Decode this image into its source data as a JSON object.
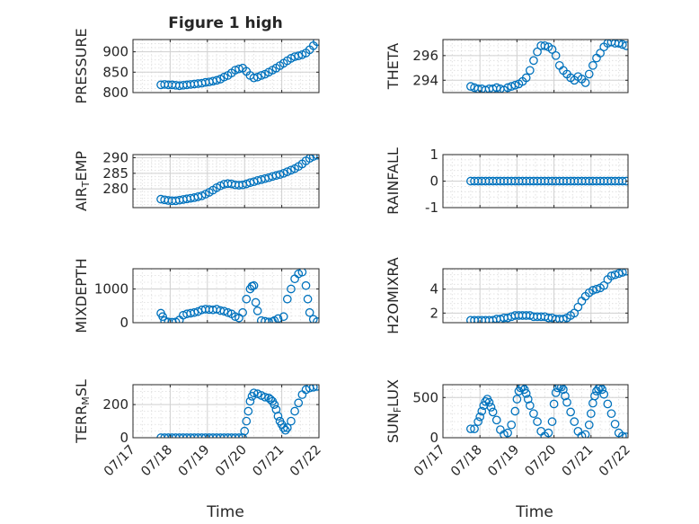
{
  "figure": {
    "title": "Figure 1 high",
    "x_axis_label": "Time",
    "date_ticks": [
      "07/17",
      "07/18",
      "07/19",
      "07/20",
      "07/21",
      "07/22"
    ],
    "marker_color": "#0072BD"
  },
  "chart_data": [
    {
      "type": "scatter",
      "ylabel": "PRESSURE",
      "grid": "on",
      "xlim": [
        "07/17",
        "07/22"
      ],
      "ylim": [
        800,
        930
      ],
      "yticks": [
        800,
        850,
        900
      ],
      "x": [
        17.75,
        17.85,
        17.95,
        18.05,
        18.15,
        18.25,
        18.35,
        18.45,
        18.55,
        18.65,
        18.75,
        18.85,
        18.95,
        19.05,
        19.15,
        19.25,
        19.35,
        19.45,
        19.55,
        19.65,
        19.75,
        19.85,
        19.95,
        20.05,
        20.15,
        20.25,
        20.35,
        20.45,
        20.55,
        20.65,
        20.75,
        20.85,
        20.95,
        21.05,
        21.15,
        21.25,
        21.35,
        21.45,
        21.55,
        21.65,
        21.75,
        21.85,
        21.95
      ],
      "y": [
        819,
        820,
        819,
        819,
        818,
        817,
        818,
        819,
        820,
        821,
        822,
        823,
        825,
        826,
        828,
        830,
        833,
        838,
        842,
        848,
        855,
        858,
        860,
        852,
        842,
        836,
        838,
        842,
        845,
        850,
        855,
        860,
        866,
        872,
        878,
        884,
        888,
        890,
        893,
        897,
        905,
        915,
        925
      ]
    },
    {
      "type": "scatter",
      "ylabel": "THETA",
      "grid": "on",
      "xlim": [
        "07/17",
        "07/22"
      ],
      "ylim": [
        293,
        297.3
      ],
      "yticks": [
        294,
        296
      ],
      "x": [
        17.75,
        17.85,
        17.95,
        18.05,
        18.15,
        18.25,
        18.35,
        18.45,
        18.55,
        18.65,
        18.75,
        18.85,
        18.95,
        19.05,
        19.15,
        19.25,
        19.35,
        19.45,
        19.55,
        19.65,
        19.75,
        19.85,
        19.95,
        20.05,
        20.15,
        20.25,
        20.35,
        20.45,
        20.55,
        20.65,
        20.75,
        20.85,
        20.95,
        21.05,
        21.15,
        21.25,
        21.35,
        21.45,
        21.55,
        21.65,
        21.75,
        21.85,
        21.95
      ],
      "y": [
        293.5,
        293.4,
        293.3,
        293.3,
        293.2,
        293.3,
        293.3,
        293.4,
        293.3,
        293.2,
        293.4,
        293.5,
        293.6,
        293.7,
        293.9,
        294.2,
        294.8,
        295.6,
        296.3,
        296.8,
        296.8,
        296.7,
        296.5,
        296.0,
        295.2,
        294.8,
        294.5,
        294.2,
        294.0,
        294.3,
        294.1,
        293.8,
        294.5,
        295.2,
        295.8,
        296.2,
        296.7,
        297.0,
        297.1,
        297.0,
        297.0,
        296.9,
        296.8
      ]
    },
    {
      "type": "scatter",
      "ylabel": "AIR_TEMP",
      "grid": "on",
      "xlim": [
        "07/17",
        "07/22"
      ],
      "ylim": [
        274,
        291
      ],
      "yticks": [
        280,
        285,
        290
      ],
      "x": [
        17.75,
        17.85,
        17.95,
        18.05,
        18.15,
        18.25,
        18.35,
        18.45,
        18.55,
        18.65,
        18.75,
        18.85,
        18.95,
        19.05,
        19.15,
        19.25,
        19.35,
        19.45,
        19.55,
        19.65,
        19.75,
        19.85,
        19.95,
        20.05,
        20.15,
        20.25,
        20.35,
        20.45,
        20.55,
        20.65,
        20.75,
        20.85,
        20.95,
        21.05,
        21.15,
        21.25,
        21.35,
        21.45,
        21.55,
        21.65,
        21.75,
        21.85,
        21.95
      ],
      "y": [
        276.7,
        276.5,
        276.3,
        276.2,
        276.2,
        276.4,
        276.6,
        276.8,
        277.0,
        277.2,
        277.5,
        277.8,
        278.3,
        278.9,
        279.6,
        280.4,
        281.0,
        281.5,
        281.7,
        281.6,
        281.3,
        281.2,
        281.3,
        281.6,
        282.0,
        282.3,
        282.7,
        283.0,
        283.3,
        283.6,
        284.0,
        284.3,
        284.6,
        285.0,
        285.5,
        286.0,
        286.5,
        287.2,
        288.0,
        289.0,
        289.8,
        290.4,
        290.8
      ]
    },
    {
      "type": "scatter",
      "ylabel": "RAINFALL",
      "grid": "on",
      "xlim": [
        "07/17",
        "07/22"
      ],
      "ylim": [
        -1,
        1
      ],
      "yticks": [
        -1,
        0,
        1
      ],
      "x": [
        17.75,
        17.85,
        17.95,
        18.05,
        18.15,
        18.25,
        18.35,
        18.45,
        18.55,
        18.65,
        18.75,
        18.85,
        18.95,
        19.05,
        19.15,
        19.25,
        19.35,
        19.45,
        19.55,
        19.65,
        19.75,
        19.85,
        19.95,
        20.05,
        20.15,
        20.25,
        20.35,
        20.45,
        20.55,
        20.65,
        20.75,
        20.85,
        20.95,
        21.05,
        21.15,
        21.25,
        21.35,
        21.45,
        21.55,
        21.65,
        21.75,
        21.85,
        21.95
      ],
      "y": [
        0,
        0,
        0,
        0,
        0,
        0,
        0,
        0,
        0,
        0,
        0,
        0,
        0,
        0,
        0,
        0,
        0,
        0,
        0,
        0,
        0,
        0,
        0,
        0,
        0,
        0,
        0,
        0,
        0,
        0,
        0,
        0,
        0,
        0,
        0,
        0,
        0,
        0,
        0,
        0,
        0,
        0,
        0
      ]
    },
    {
      "type": "scatter",
      "ylabel": "MIXDEPTH",
      "grid": "on",
      "xlim": [
        "07/17",
        "07/22"
      ],
      "ylim": [
        0,
        1600
      ],
      "yticks": [
        0,
        1000
      ],
      "x": [
        17.75,
        17.8,
        17.85,
        17.95,
        18.05,
        18.15,
        18.25,
        18.35,
        18.45,
        18.55,
        18.65,
        18.75,
        18.85,
        18.95,
        19.05,
        19.15,
        19.25,
        19.35,
        19.45,
        19.55,
        19.65,
        19.75,
        19.85,
        19.95,
        20.05,
        20.15,
        20.2,
        20.25,
        20.3,
        20.35,
        20.45,
        20.55,
        20.65,
        20.75,
        20.8,
        20.9,
        21.05,
        21.15,
        21.25,
        21.35,
        21.45,
        21.55,
        21.65,
        21.7,
        21.75,
        21.85,
        21.95
      ],
      "y": [
        280,
        180,
        60,
        20,
        15,
        20,
        80,
        220,
        260,
        280,
        300,
        330,
        380,
        400,
        390,
        380,
        400,
        360,
        340,
        300,
        260,
        180,
        140,
        300,
        700,
        1000,
        1080,
        1100,
        600,
        350,
        60,
        40,
        20,
        30,
        60,
        120,
        180,
        700,
        1000,
        1300,
        1450,
        1500,
        1100,
        700,
        300,
        100,
        30
      ]
    },
    {
      "type": "scatter",
      "ylabel": "H2OMIXRA",
      "grid": "on",
      "xlim": [
        "07/17",
        "07/22"
      ],
      "ylim": [
        1.2,
        5.7
      ],
      "yticks": [
        2,
        4
      ],
      "x": [
        17.75,
        17.85,
        17.95,
        18.05,
        18.15,
        18.25,
        18.35,
        18.45,
        18.55,
        18.65,
        18.75,
        18.85,
        18.95,
        19.05,
        19.15,
        19.25,
        19.35,
        19.45,
        19.55,
        19.65,
        19.75,
        19.85,
        19.95,
        20.05,
        20.15,
        20.25,
        20.35,
        20.45,
        20.55,
        20.65,
        20.75,
        20.85,
        20.95,
        21.05,
        21.15,
        21.25,
        21.35,
        21.45,
        21.55,
        21.65,
        21.75,
        21.85,
        21.95
      ],
      "y": [
        1.4,
        1.4,
        1.4,
        1.4,
        1.4,
        1.4,
        1.4,
        1.5,
        1.5,
        1.6,
        1.6,
        1.7,
        1.8,
        1.8,
        1.8,
        1.8,
        1.8,
        1.7,
        1.7,
        1.7,
        1.7,
        1.6,
        1.6,
        1.5,
        1.5,
        1.5,
        1.6,
        1.8,
        2.0,
        2.5,
        3.0,
        3.4,
        3.7,
        3.9,
        4.0,
        4.1,
        4.3,
        4.8,
        5.1,
        5.2,
        5.3,
        5.4,
        5.5
      ]
    },
    {
      "type": "scatter",
      "ylabel": "TERR_MSL",
      "grid": "on",
      "xlim": [
        "07/17",
        "07/22"
      ],
      "ylim": [
        0,
        320
      ],
      "yticks": [
        0,
        200
      ],
      "x": [
        17.75,
        17.85,
        17.95,
        18.05,
        18.15,
        18.25,
        18.35,
        18.45,
        18.55,
        18.65,
        18.75,
        18.85,
        18.95,
        19.05,
        19.15,
        19.25,
        19.35,
        19.45,
        19.55,
        19.65,
        19.75,
        19.85,
        19.95,
        20.0,
        20.05,
        20.1,
        20.15,
        20.2,
        20.25,
        20.35,
        20.45,
        20.55,
        20.65,
        20.7,
        20.75,
        20.8,
        20.85,
        20.9,
        20.95,
        21.0,
        21.05,
        21.1,
        21.15,
        21.25,
        21.35,
        21.45,
        21.55,
        21.65,
        21.75,
        21.85,
        21.95
      ],
      "y": [
        0,
        0,
        0,
        0,
        0,
        0,
        0,
        0,
        0,
        0,
        0,
        0,
        0,
        0,
        0,
        0,
        0,
        0,
        0,
        0,
        0,
        0,
        0,
        40,
        100,
        160,
        220,
        250,
        270,
        265,
        255,
        245,
        240,
        230,
        220,
        200,
        170,
        130,
        100,
        80,
        60,
        45,
        60,
        100,
        160,
        210,
        260,
        290,
        300,
        305,
        310
      ]
    },
    {
      "type": "scatter",
      "ylabel": "SUN_FLUX",
      "grid": "on",
      "xlim": [
        "07/17",
        "07/22"
      ],
      "ylim": [
        0,
        660
      ],
      "yticks": [
        0,
        500
      ],
      "x": [
        17.75,
        17.85,
        17.95,
        18.0,
        18.05,
        18.1,
        18.15,
        18.2,
        18.25,
        18.3,
        18.35,
        18.45,
        18.55,
        18.65,
        18.75,
        18.85,
        18.95,
        19.0,
        19.05,
        19.1,
        19.15,
        19.2,
        19.25,
        19.3,
        19.35,
        19.45,
        19.55,
        19.65,
        19.75,
        19.85,
        19.95,
        20.0,
        20.05,
        20.1,
        20.15,
        20.2,
        20.25,
        20.3,
        20.35,
        20.45,
        20.55,
        20.65,
        20.75,
        20.85,
        20.95,
        21.0,
        21.05,
        21.1,
        21.15,
        21.2,
        21.25,
        21.3,
        21.35,
        21.45,
        21.55,
        21.65,
        21.75,
        21.85,
        21.95
      ],
      "y": [
        110,
        110,
        200,
        260,
        330,
        400,
        450,
        480,
        440,
        380,
        320,
        220,
        100,
        40,
        60,
        160,
        330,
        480,
        580,
        620,
        630,
        600,
        550,
        480,
        400,
        300,
        200,
        80,
        20,
        60,
        200,
        420,
        560,
        620,
        640,
        630,
        600,
        520,
        440,
        320,
        200,
        80,
        20,
        40,
        160,
        300,
        430,
        520,
        580,
        610,
        630,
        600,
        540,
        420,
        300,
        170,
        60,
        20,
        10
      ]
    }
  ]
}
